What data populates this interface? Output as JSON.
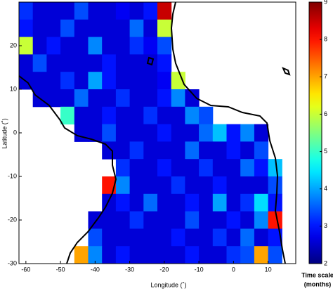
{
  "chart_data": {
    "type": "heatmap",
    "xlabel": "Longitude (˚)",
    "ylabel": "Latitude (˚)",
    "xlim": [
      -62,
      18
    ],
    "ylim": [
      -30,
      30
    ],
    "xticks": [
      -60,
      -50,
      -40,
      -30,
      -20,
      -10,
      0,
      10
    ],
    "yticks": [
      -30,
      -20,
      -10,
      0,
      10,
      20
    ],
    "zlim": [
      2,
      9
    ],
    "zticks": [
      2,
      3,
      4,
      5,
      6,
      7,
      8,
      9
    ],
    "colormap": "jet",
    "colorbar_label": [
      "Time scale",
      "(months)"
    ],
    "values": [
      [
        3.2,
        2.6,
        2.6,
        2.6,
        3.4,
        2.6,
        2.6,
        2.8,
        2.6,
        3.0,
        8.5,
        null,
        null,
        null,
        null,
        null,
        null,
        null,
        null,
        null
      ],
      [
        3.0,
        2.6,
        2.6,
        3.4,
        2.6,
        2.6,
        2.6,
        2.6,
        3.6,
        2.6,
        6.0,
        null,
        null,
        null,
        null,
        null,
        null,
        null,
        null,
        null
      ],
      [
        6.0,
        2.6,
        3.0,
        2.6,
        2.6,
        3.8,
        2.6,
        2.6,
        3.2,
        2.8,
        3.4,
        null,
        null,
        null,
        null,
        null,
        null,
        null,
        null,
        null
      ],
      [
        2.6,
        3.4,
        2.6,
        2.6,
        2.6,
        2.6,
        3.0,
        2.6,
        2.6,
        2.6,
        3.0,
        null,
        null,
        null,
        null,
        null,
        null,
        null,
        null,
        null
      ],
      [
        2.6,
        2.6,
        2.6,
        3.2,
        2.6,
        4.0,
        3.0,
        2.6,
        2.6,
        2.6,
        2.8,
        6.0,
        null,
        null,
        null,
        null,
        null,
        null,
        null,
        null
      ],
      [
        null,
        2.6,
        2.6,
        2.6,
        3.6,
        2.6,
        2.6,
        3.2,
        2.6,
        2.6,
        3.0,
        3.8,
        2.6,
        null,
        null,
        null,
        null,
        null,
        null,
        null
      ],
      [
        null,
        null,
        null,
        5.0,
        2.6,
        2.6,
        3.0,
        2.6,
        2.6,
        3.2,
        2.6,
        2.6,
        3.8,
        3.4,
        null,
        null,
        null,
        null,
        null,
        null
      ],
      [
        null,
        null,
        null,
        null,
        2.6,
        2.6,
        3.4,
        2.6,
        2.6,
        2.6,
        3.0,
        2.6,
        2.6,
        3.6,
        4.2,
        3.0,
        3.8,
        2.6,
        null,
        null
      ],
      [
        null,
        null,
        null,
        null,
        null,
        null,
        2.6,
        2.6,
        3.2,
        2.6,
        2.6,
        2.6,
        3.6,
        2.6,
        2.6,
        3.0,
        2.6,
        3.4,
        null,
        null
      ],
      [
        null,
        null,
        null,
        null,
        null,
        null,
        null,
        3.2,
        2.6,
        2.6,
        3.0,
        2.6,
        2.6,
        3.2,
        2.6,
        2.6,
        3.6,
        3.0,
        4.2,
        null
      ],
      [
        null,
        null,
        null,
        null,
        null,
        null,
        8.0,
        3.8,
        2.6,
        2.6,
        2.6,
        3.2,
        2.6,
        2.6,
        3.0,
        2.6,
        2.6,
        2.6,
        3.4,
        null
      ],
      [
        null,
        null,
        null,
        null,
        null,
        null,
        2.6,
        3.0,
        2.6,
        3.6,
        2.6,
        2.6,
        3.0,
        2.6,
        4.0,
        2.6,
        3.2,
        4.4,
        3.0,
        null
      ],
      [
        null,
        null,
        null,
        null,
        null,
        2.6,
        2.6,
        2.6,
        3.2,
        2.6,
        2.6,
        2.6,
        3.4,
        2.6,
        2.6,
        3.0,
        2.6,
        3.8,
        8.0,
        null
      ],
      [
        null,
        null,
        null,
        null,
        null,
        3.4,
        2.6,
        2.6,
        2.6,
        2.6,
        2.6,
        3.0,
        2.6,
        2.6,
        3.2,
        2.6,
        3.6,
        2.6,
        3.0,
        null
      ],
      [
        null,
        null,
        null,
        null,
        7.0,
        3.8,
        2.6,
        3.0,
        2.6,
        2.6,
        2.6,
        2.6,
        3.0,
        2.6,
        2.6,
        3.2,
        3.4,
        7.0,
        3.4,
        null
      ]
    ]
  }
}
